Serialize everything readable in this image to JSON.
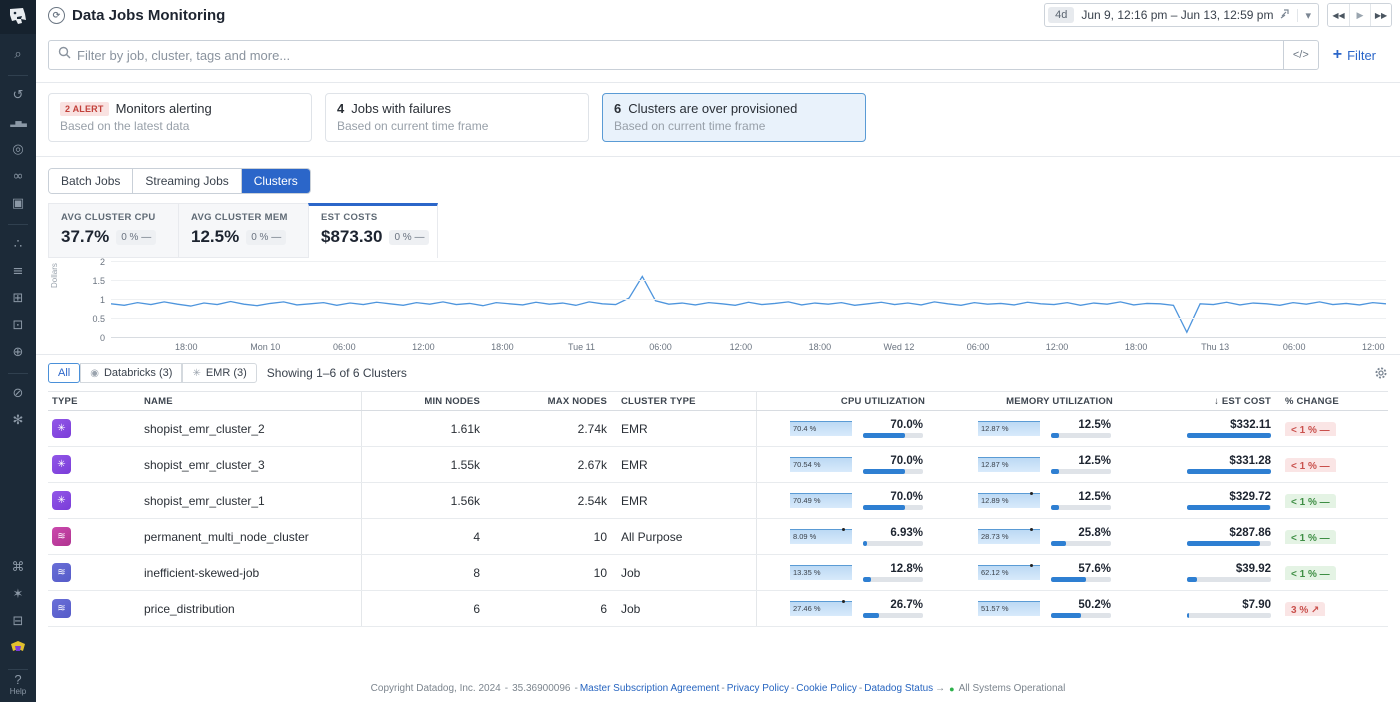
{
  "app": {
    "title": "Data Jobs Monitoring"
  },
  "header": {
    "range_shortcut": "4d",
    "range_text": "Jun 9, 12:16 pm – Jun 13, 12:59 pm",
    "caret": "▾",
    "rewind": "◀◀",
    "play": "▶",
    "forward": "▶▶"
  },
  "search": {
    "placeholder": "Filter by job, cluster, tags and more...",
    "code_toggle": "</>",
    "filter_label": "Filter",
    "plus": "+"
  },
  "alerts": [
    {
      "badge": "2 ALERT",
      "title": "Monitors alerting",
      "subtitle": "Based on the latest data"
    },
    {
      "count": "4",
      "title": "Jobs with failures",
      "subtitle": "Based on current time frame"
    },
    {
      "count": "6",
      "title": "Clusters are over provisioned",
      "subtitle": "Based on current time frame"
    }
  ],
  "tabs": [
    {
      "label": "Batch Jobs"
    },
    {
      "label": "Streaming Jobs"
    },
    {
      "label": "Clusters"
    }
  ],
  "metrics": [
    {
      "label": "AVG CLUSTER CPU",
      "value": "37.7%",
      "change": "0 % —"
    },
    {
      "label": "AVG CLUSTER MEM",
      "value": "12.5%",
      "change": "0 % —"
    },
    {
      "label": "EST COSTS",
      "value": "$873.30",
      "change": "0 % —"
    }
  ],
  "chart_data": {
    "type": "line",
    "title": "Estimated cluster costs over time",
    "ylabel": "Dollars",
    "ylim": [
      0,
      2
    ],
    "y_ticks": [
      0,
      0.5,
      1,
      1.5,
      2
    ],
    "x_ticks": [
      {
        "label": "18:00",
        "pos": 0.059
      },
      {
        "label": "Mon 10",
        "pos": 0.121
      },
      {
        "label": "06:00",
        "pos": 0.183
      },
      {
        "label": "12:00",
        "pos": 0.245
      },
      {
        "label": "18:00",
        "pos": 0.307
      },
      {
        "label": "Tue 11",
        "pos": 0.369
      },
      {
        "label": "06:00",
        "pos": 0.431
      },
      {
        "label": "12:00",
        "pos": 0.494
      },
      {
        "label": "18:00",
        "pos": 0.556
      },
      {
        "label": "Wed 12",
        "pos": 0.618
      },
      {
        "label": "06:00",
        "pos": 0.68
      },
      {
        "label": "12:00",
        "pos": 0.742
      },
      {
        "label": "18:00",
        "pos": 0.804
      },
      {
        "label": "Thu 13",
        "pos": 0.866
      },
      {
        "label": "06:00",
        "pos": 0.928
      },
      {
        "label": "12:00",
        "pos": 0.99
      }
    ],
    "series_color": "#4e95dd",
    "values": [
      0.9,
      0.86,
      0.93,
      0.88,
      0.95,
      0.89,
      0.84,
      0.92,
      0.88,
      0.96,
      0.89,
      0.85,
      0.91,
      0.95,
      0.87,
      0.9,
      0.93,
      0.86,
      0.92,
      0.88,
      0.94,
      0.9,
      0.86,
      0.93,
      0.89,
      0.95,
      0.88,
      0.91,
      0.85,
      0.93,
      0.9,
      0.87,
      0.94,
      0.89,
      0.92,
      0.86,
      0.95,
      0.9,
      0.88,
      1.05,
      1.62,
      0.98,
      0.89,
      0.92,
      0.87,
      0.93,
      0.9,
      0.86,
      0.94,
      0.88,
      0.91,
      0.95,
      0.87,
      0.92,
      0.89,
      0.93,
      0.86,
      0.9,
      0.94,
      0.88,
      0.92,
      0.87,
      0.95,
      0.9,
      0.86,
      0.93,
      0.89,
      0.91,
      0.87,
      0.94,
      0.9,
      0.88,
      0.93,
      0.86,
      0.92,
      0.89,
      0.95,
      0.87,
      0.91,
      0.9,
      0.86,
      0.15,
      0.9,
      0.88,
      0.94,
      0.87,
      0.92,
      0.9,
      0.86,
      0.93,
      0.89,
      0.95,
      0.88,
      0.91,
      0.87,
      0.93,
      0.9
    ]
  },
  "toolbar": {
    "chips": [
      {
        "label": "All",
        "icon": ""
      },
      {
        "label": "Databricks (3)",
        "icon": "◉"
      },
      {
        "label": "EMR (3)",
        "icon": "✳"
      }
    ],
    "showing": "Showing 1–6 of 6 Clusters"
  },
  "table": {
    "columns": {
      "type": "TYPE",
      "name": "NAME",
      "min": "MIN NODES",
      "max": "MAX NODES",
      "ctype": "CLUSTER TYPE",
      "cpu": "CPU UTILIZATION",
      "mem": "MEMORY UTILIZATION",
      "cost": "↓ EST COST",
      "change": "% CHANGE"
    },
    "rows": [
      {
        "icon": "emr",
        "glyph": "✳",
        "name": "shopist_emr_cluster_2",
        "min_nodes": "1.61k",
        "max_nodes": "2.74k",
        "cluster_type": "EMR",
        "cpu": {
          "spark": "70.4 %",
          "value": "70.0%",
          "pct": 70
        },
        "mem": {
          "spark": "12.87 %",
          "value": "12.5%",
          "pct": 12.5
        },
        "cost": {
          "value": "$332.11",
          "pct": 100
        },
        "change": {
          "label": "< 1 % —",
          "tone": "red"
        }
      },
      {
        "icon": "emr",
        "glyph": "✳",
        "name": "shopist_emr_cluster_3",
        "min_nodes": "1.55k",
        "max_nodes": "2.67k",
        "cluster_type": "EMR",
        "cpu": {
          "spark": "70.54 %",
          "value": "70.0%",
          "pct": 70
        },
        "mem": {
          "spark": "12.87 %",
          "value": "12.5%",
          "pct": 12.5
        },
        "cost": {
          "value": "$331.28",
          "pct": 99.7
        },
        "change": {
          "label": "< 1 % —",
          "tone": "red"
        }
      },
      {
        "icon": "emr",
        "glyph": "✳",
        "name": "shopist_emr_cluster_1",
        "min_nodes": "1.56k",
        "max_nodes": "2.54k",
        "cluster_type": "EMR",
        "cpu": {
          "spark": "70.49 %",
          "value": "70.0%",
          "pct": 70
        },
        "mem": {
          "spark": "12.89 %",
          "marker": "dot",
          "value": "12.5%",
          "pct": 12.5
        },
        "cost": {
          "value": "$329.72",
          "pct": 99.3
        },
        "change": {
          "label": "< 1 % —",
          "tone": "green"
        }
      },
      {
        "icon": "adb",
        "glyph": "≋",
        "name": "permanent_multi_node_cluster",
        "min_nodes": "4",
        "max_nodes": "10",
        "cluster_type": "All Purpose",
        "cpu": {
          "spark": "8.09 %",
          "marker": "dot",
          "value": "6.93%",
          "pct": 6.93
        },
        "mem": {
          "spark": "28.73 %",
          "marker": "dot",
          "value": "25.8%",
          "pct": 25.8
        },
        "cost": {
          "value": "$287.86",
          "pct": 86.7
        },
        "change": {
          "label": "< 1 % —",
          "tone": "green"
        }
      },
      {
        "icon": "job",
        "glyph": "≋",
        "name": "inefficient-skewed-job",
        "min_nodes": "8",
        "max_nodes": "10",
        "cluster_type": "Job",
        "cpu": {
          "spark": "13.35 %",
          "value": "12.8%",
          "pct": 12.8
        },
        "mem": {
          "spark": "62.12 %",
          "marker": "dot",
          "value": "57.6%",
          "pct": 57.6
        },
        "cost": {
          "value": "$39.92",
          "pct": 12
        },
        "change": {
          "label": "< 1 % —",
          "tone": "green"
        }
      },
      {
        "icon": "job",
        "glyph": "≋",
        "name": "price_distribution",
        "min_nodes": "6",
        "max_nodes": "6",
        "cluster_type": "Job",
        "cpu": {
          "spark": "27.46 %",
          "marker": "dot",
          "value": "26.7%",
          "pct": 26.7
        },
        "mem": {
          "spark": "51.57 %",
          "value": "50.2%",
          "pct": 50.2
        },
        "cost": {
          "value": "$7.90",
          "pct": 2.4
        },
        "change": {
          "label": "3 % ↗",
          "tone": "red"
        }
      }
    ]
  },
  "sidebar": {
    "top_icons": [
      {
        "name": "search-icon",
        "glyph": "⌕"
      },
      {
        "name": "history-icon",
        "glyph": "↺"
      },
      {
        "name": "metrics-icon",
        "glyph": "▂▅▃"
      },
      {
        "name": "apm-icon",
        "glyph": "◎"
      },
      {
        "name": "watchdog-icon",
        "glyph": "∞"
      },
      {
        "name": "infrastructure-icon",
        "glyph": "▣"
      },
      {
        "name": "service-map-icon",
        "glyph": "∴"
      },
      {
        "name": "logs-icon",
        "glyph": "≡"
      },
      {
        "name": "dashboards-icon",
        "glyph": "⊞"
      },
      {
        "name": "ci-icon",
        "glyph": "⊡"
      },
      {
        "name": "synthetics-icon",
        "glyph": "⊕"
      },
      {
        "name": "monitors-icon",
        "glyph": "⊘"
      },
      {
        "name": "security-icon",
        "glyph": "✻"
      }
    ],
    "bottom_icons": [
      {
        "name": "integrations-icon",
        "glyph": "⌘"
      },
      {
        "name": "bits-ai-icon",
        "glyph": "✶"
      },
      {
        "name": "workspaces-icon",
        "glyph": "⊟"
      },
      {
        "name": "mascot-icon",
        "glyph": ""
      }
    ],
    "help_q": "?",
    "help_label": "Help"
  },
  "footer": {
    "copyright": "Copyright Datadog, Inc. 2024",
    "sep": "-",
    "build": "35.36900096",
    "links": [
      "Master Subscription Agreement",
      "Privacy Policy",
      "Cookie Policy",
      "Datadog Status"
    ],
    "arrow": "→",
    "status_dot": "●",
    "status": "All Systems Operational"
  },
  "colors": {
    "accent": "#2b66c9",
    "chart_line": "#4e95dd",
    "alert_red": "#c2403a",
    "ok_green": "#3e8e44",
    "sidebar_bg": "#1c2a38"
  }
}
